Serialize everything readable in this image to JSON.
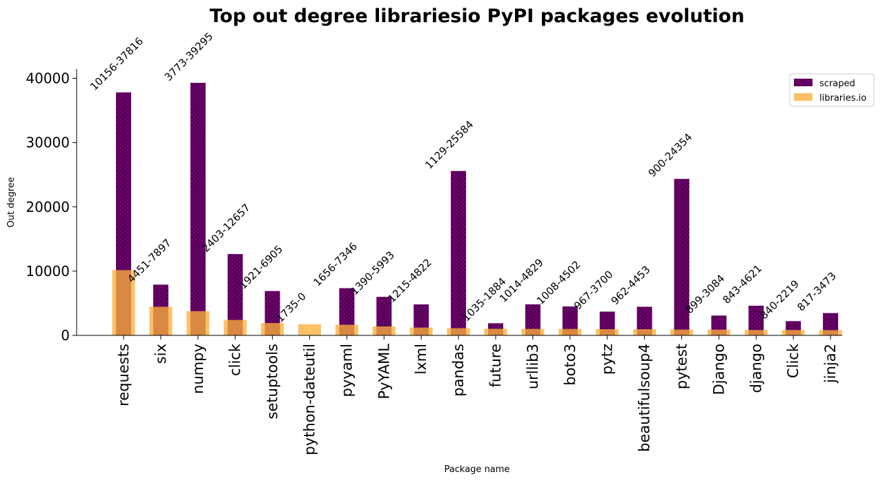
{
  "chart_data": {
    "type": "bar",
    "title": "Top out degree librariesio PyPI packages evolution",
    "xlabel": "Package name",
    "ylabel": "Out degree",
    "ylim": [
      0,
      41200
    ],
    "yticks": [
      0,
      10000,
      20000,
      30000,
      40000
    ],
    "legend": {
      "placement": "top-right",
      "entries": [
        "scraped",
        "libraries.io"
      ]
    },
    "categories": [
      "requests",
      "six",
      "numpy",
      "click",
      "setuptools",
      "python-dateutil",
      "pyyaml",
      "PyYAML",
      "lxml",
      "pandas",
      "future",
      "urllib3",
      "boto3",
      "pytz",
      "beautifulsoup4",
      "pytest",
      "Django",
      "django",
      "Click",
      "jinja2"
    ],
    "series": [
      {
        "name": "scraped",
        "color": "#6b006b",
        "values": [
          37816,
          7897,
          39295,
          12657,
          6905,
          0,
          7346,
          5993,
          4822,
          25584,
          1884,
          4829,
          4502,
          3700,
          4453,
          24354,
          3084,
          4621,
          2219,
          3473
        ]
      },
      {
        "name": "libraries.io",
        "color": "#fbb03b",
        "values": [
          10156,
          4451,
          3773,
          2403,
          1921,
          1735,
          1656,
          1390,
          1215,
          1129,
          1035,
          1014,
          1008,
          967,
          962,
          900,
          899,
          843,
          840,
          817
        ]
      }
    ],
    "annotations": [
      "10156-37816",
      "4451-7897",
      "3773-39295",
      "2403-12657",
      "1921-6905",
      "1735-0",
      "1656-7346",
      "1390-5993",
      "1215-4822",
      "1129-25584",
      "1035-1884",
      "1014-4829",
      "1008-4502",
      "967-3700",
      "962-4453",
      "900-24354",
      "899-3084",
      "843-4621",
      "840-2219",
      "817-3473"
    ]
  }
}
